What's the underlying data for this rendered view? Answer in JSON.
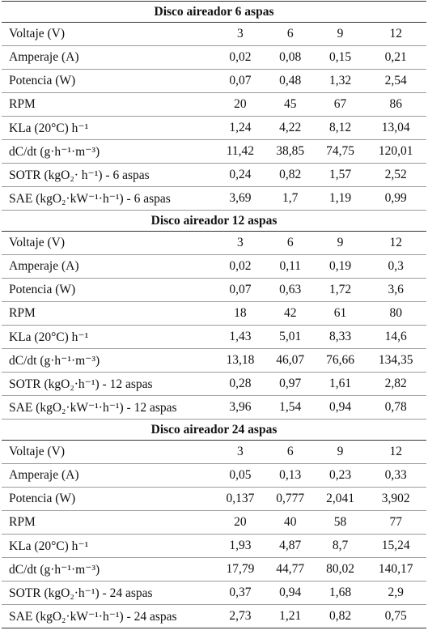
{
  "sections": [
    {
      "title": "Disco aireador 6 aspas",
      "rows": [
        [
          "Voltaje (V)",
          "3",
          "6",
          "9",
          "12"
        ],
        [
          "Amperaje (A)",
          "0,02",
          "0,08",
          "0,15",
          "0,21"
        ],
        [
          "Potencia (W)",
          "0,07",
          "0,48",
          "1,32",
          "2,54"
        ],
        [
          "RPM",
          "20",
          "45",
          "67",
          "86"
        ],
        [
          "KLa (20°C) h⁻¹",
          "1,24",
          "4,22",
          "8,12",
          "13,04"
        ],
        [
          "dC/dt (g·h⁻¹·m⁻³)",
          "11,42",
          "38,85",
          "74,75",
          "120,01"
        ],
        [
          "SOTR (kgO₂· h⁻¹) - 6 aspas",
          "0,24",
          "0,82",
          "1,57",
          "2,52"
        ],
        [
          "SAE (kgO₂·kW⁻¹·h⁻¹) - 6 aspas",
          "3,69",
          "1,7",
          "1,19",
          "0,99"
        ]
      ]
    },
    {
      "title": "Disco aireador 12 aspas",
      "rows": [
        [
          "Voltaje (V)",
          "3",
          "6",
          "9",
          "12"
        ],
        [
          "Amperaje (A)",
          "0,02",
          "0,11",
          "0,19",
          "0,3"
        ],
        [
          "Potencia (W)",
          "0,07",
          "0,63",
          "1,72",
          "3,6"
        ],
        [
          "RPM",
          "18",
          "42",
          "61",
          "80"
        ],
        [
          "KLa (20°C) h⁻¹",
          "1,43",
          "5,01",
          "8,33",
          "14,6"
        ],
        [
          "dC/dt (g·h⁻¹·m⁻³)",
          "13,18",
          "46,07",
          "76,66",
          "134,35"
        ],
        [
          "SOTR (kgO₂·h⁻¹) - 12 aspas",
          "0,28",
          "0,97",
          "1,61",
          "2,82"
        ],
        [
          "SAE (kgO₂·kW⁻¹·h⁻¹) - 12 aspas",
          "3,96",
          "1,54",
          "0,94",
          "0,78"
        ]
      ]
    },
    {
      "title": "Disco aireador 24 aspas",
      "rows": [
        [
          "Voltaje (V)",
          "3",
          "6",
          "9",
          "12"
        ],
        [
          "Amperaje (A)",
          "0,05",
          "0,13",
          "0,23",
          "0,33"
        ],
        [
          "Potencia (W)",
          "0,137",
          "0,777",
          "2,041",
          "3,902"
        ],
        [
          "RPM",
          "20",
          "40",
          "58",
          "77"
        ],
        [
          "KLa (20°C) h⁻¹",
          "1,93",
          "4,87",
          "8,7",
          "15,24"
        ],
        [
          "dC/dt (g·h⁻¹·m⁻³)",
          "17,79",
          "44,77",
          "80,02",
          "140,17"
        ],
        [
          "SOTR (kgO₂·h⁻¹) - 24 aspas",
          "0,37",
          "0,94",
          "1,68",
          "2,9"
        ],
        [
          "SAE (kgO₂·kW⁻¹·h⁻¹) - 24 aspas",
          "2,73",
          "1,21",
          "0,82",
          "0,75"
        ]
      ]
    }
  ]
}
